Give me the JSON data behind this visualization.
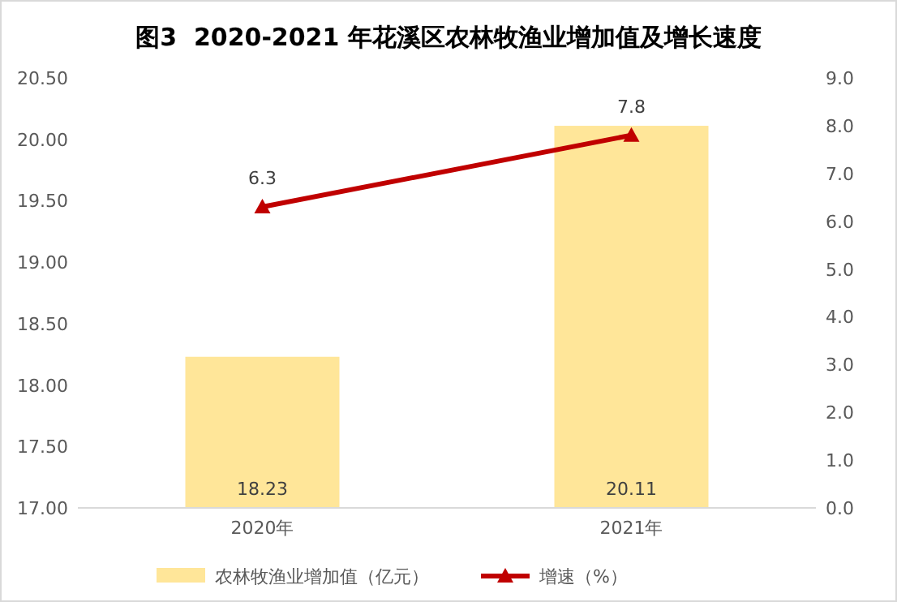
{
  "chart_data": {
    "type": "bar",
    "title": "图3  2020-2021 年花溪区农林牧渔业增加值及增长速度",
    "categories": [
      "2020年",
      "2021年"
    ],
    "series": [
      {
        "name": "农林牧渔业增加值（亿元）",
        "color": "#ffe699",
        "values": [
          18.23,
          20.11
        ]
      },
      {
        "name": "增速（%）",
        "type": "line",
        "axis": "y2",
        "color": "#c00000",
        "values": [
          6.3,
          7.8
        ],
        "marker": "triangle"
      }
    ],
    "ylim": [
      17,
      20.5
    ],
    "yticks": [
      {
        "value": 17,
        "label": "17.00"
      },
      {
        "value": 17.5,
        "label": "17.50"
      },
      {
        "value": 18,
        "label": "18.00"
      },
      {
        "value": 18.5,
        "label": "18.50"
      },
      {
        "value": 19,
        "label": "19.00"
      },
      {
        "value": 19.5,
        "label": "19.50"
      },
      {
        "value": 20,
        "label": "20.00"
      },
      {
        "value": 20.5,
        "label": "20.50"
      }
    ],
    "y2lim": [
      0,
      9
    ],
    "y2ticks": [
      {
        "value": 0,
        "label": "0.0"
      },
      {
        "value": 1,
        "label": "1.0"
      },
      {
        "value": 2,
        "label": "2.0"
      },
      {
        "value": 3,
        "label": "3.0"
      },
      {
        "value": 4,
        "label": "4.0"
      },
      {
        "value": 5,
        "label": "5.0"
      },
      {
        "value": 6,
        "label": "6.0"
      },
      {
        "value": 7,
        "label": "7.0"
      },
      {
        "value": 8,
        "label": "8.0"
      },
      {
        "value": 9,
        "label": "9.0"
      }
    ],
    "data_labels": true,
    "grid": false,
    "legend": "bottom"
  }
}
